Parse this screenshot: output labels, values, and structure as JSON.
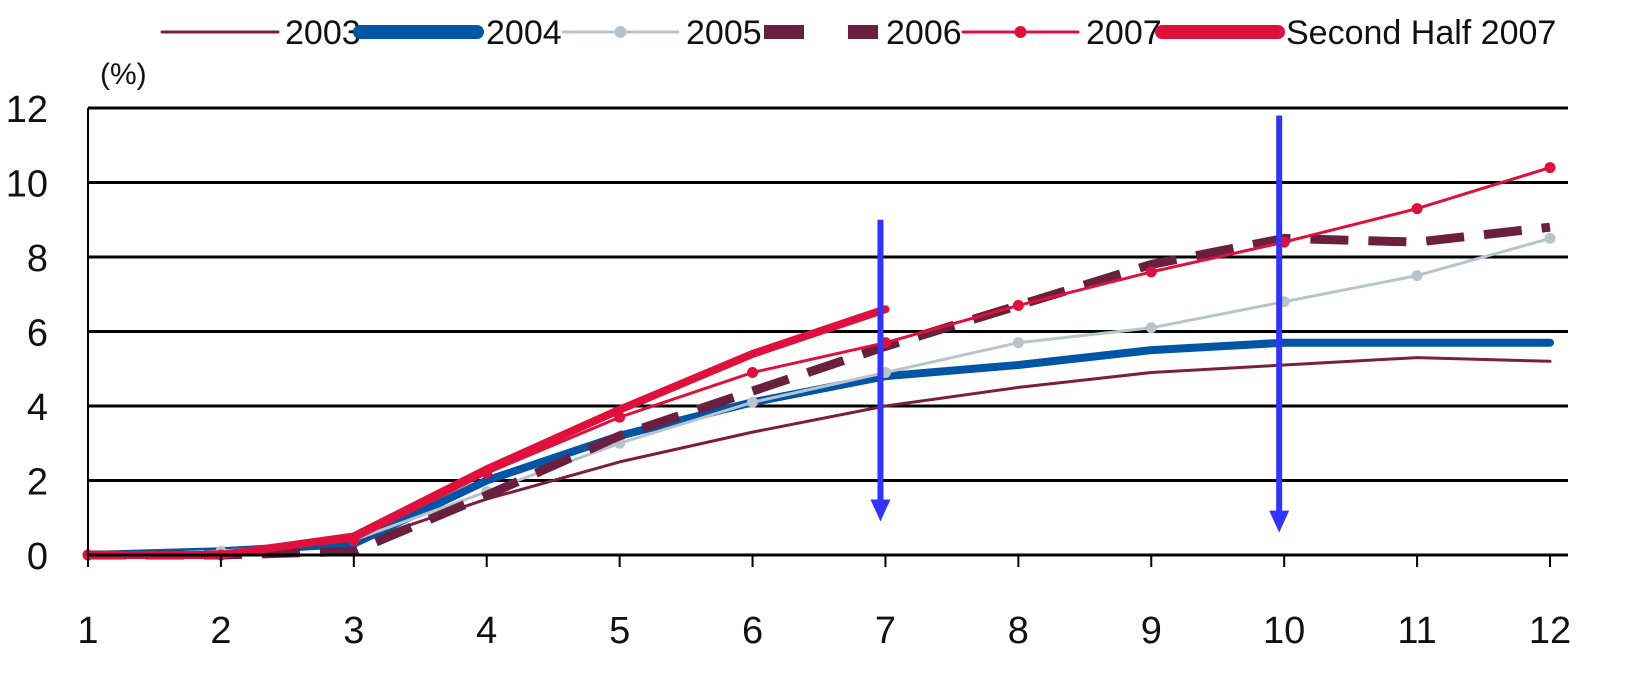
{
  "chart_data": {
    "type": "line",
    "title": "",
    "xlabel": "",
    "ylabel": "(%)",
    "x": [
      1,
      2,
      3,
      4,
      5,
      6,
      7,
      8,
      9,
      10,
      11,
      12
    ],
    "xlim": [
      1,
      12
    ],
    "ylim": [
      0,
      12
    ],
    "yticks": [
      0,
      2,
      4,
      6,
      8,
      10,
      12
    ],
    "xticks": [
      1,
      2,
      3,
      4,
      5,
      6,
      7,
      8,
      9,
      10,
      11,
      12
    ],
    "grid": "horizontal",
    "legend_position": "top",
    "series": [
      {
        "name": "2003",
        "color": "#7a1f3d",
        "style": "thin",
        "values": [
          0,
          0.1,
          0.3,
          1.5,
          2.5,
          3.3,
          4.0,
          4.5,
          4.9,
          5.1,
          5.3,
          5.2
        ]
      },
      {
        "name": "2004",
        "color": "#0055a5",
        "style": "thick",
        "values": [
          0,
          0.1,
          0.3,
          2.0,
          3.2,
          4.1,
          4.8,
          5.1,
          5.5,
          5.7,
          5.7,
          5.7
        ]
      },
      {
        "name": "2005",
        "color": "#b8c4cc",
        "style": "marker",
        "values": [
          0,
          0.1,
          0.4,
          1.7,
          3.0,
          4.1,
          4.9,
          5.7,
          6.1,
          6.8,
          7.5,
          8.5
        ]
      },
      {
        "name": "2006",
        "color": "#6b1f3f",
        "style": "dashed",
        "values": [
          0,
          0,
          0.1,
          1.6,
          3.2,
          4.4,
          5.6,
          6.7,
          7.8,
          8.5,
          8.4,
          8.8
        ]
      },
      {
        "name": "2007",
        "color": "#e0103c",
        "style": "marker",
        "values": [
          0,
          0,
          0.4,
          2.2,
          3.7,
          4.9,
          5.7,
          6.7,
          7.6,
          8.4,
          9.3,
          10.4
        ]
      },
      {
        "name": "Second Half 2007",
        "color": "#e0103c",
        "style": "thick",
        "values": [
          0,
          0,
          0.5,
          2.3,
          3.9,
          5.4,
          6.6,
          null,
          null,
          null,
          null,
          null
        ]
      }
    ],
    "annotations": [
      {
        "type": "arrow",
        "x": 7,
        "from_y": 9,
        "to_y": 0.9,
        "color": "#3333ff"
      },
      {
        "type": "arrow",
        "x": 10,
        "from_y": 11.8,
        "to_y": 0.6,
        "color": "#3333ff"
      }
    ]
  }
}
